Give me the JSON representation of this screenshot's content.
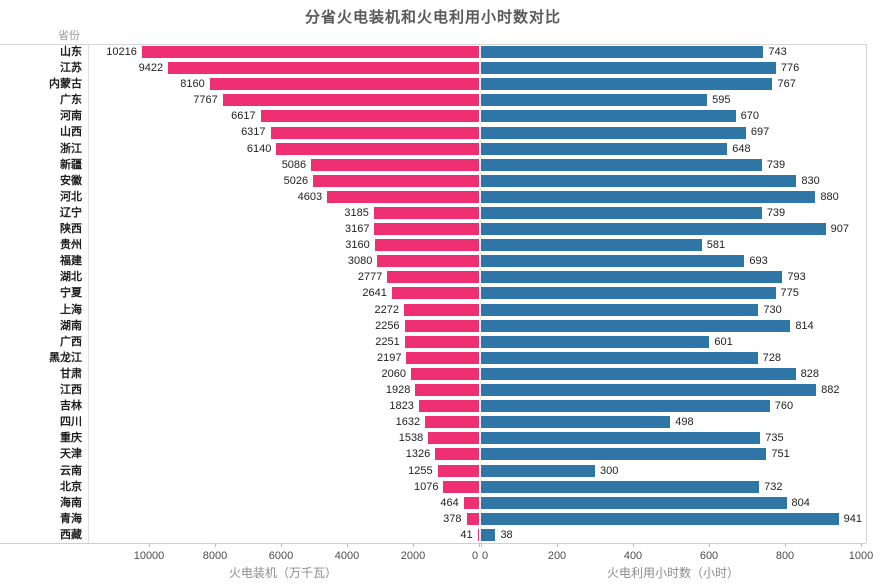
{
  "title": "分省火电装机和火电利用小时数对比",
  "column_header": "省份",
  "colors": {
    "left_bar": "#ee3072",
    "right_bar": "#2d76a6",
    "title_text": "#595959",
    "axis_text": "#8c8c8c",
    "border": "#d6d6d6"
  },
  "chart_data": {
    "type": "bar",
    "subtype": "diverging-horizontal-tornado",
    "title": "分省火电装机和火电利用小时数对比",
    "ylabel": "省份",
    "grid": false,
    "legend": false,
    "categories": [
      "山东",
      "江苏",
      "内蒙古",
      "广东",
      "河南",
      "山西",
      "浙江",
      "新疆",
      "安徽",
      "河北",
      "辽宁",
      "陕西",
      "贵州",
      "福建",
      "湖北",
      "宁夏",
      "上海",
      "湖南",
      "广西",
      "黑龙江",
      "甘肃",
      "江西",
      "吉林",
      "四川",
      "重庆",
      "天津",
      "云南",
      "北京",
      "海南",
      "青海",
      "西藏"
    ],
    "series": [
      {
        "name": "火电装机（万千瓦）",
        "side": "left",
        "color": "#ee3072",
        "axis_label": "火电装机（万千瓦）",
        "ticks": [
          10000,
          8000,
          6000,
          4000,
          2000,
          0
        ],
        "axis_range": [
          0,
          11800
        ],
        "values": [
          10216,
          9422,
          8160,
          7767,
          6617,
          6317,
          6140,
          5086,
          5026,
          4603,
          3185,
          3167,
          3160,
          3080,
          2777,
          2641,
          2272,
          2256,
          2251,
          2197,
          2060,
          1928,
          1823,
          1632,
          1538,
          1326,
          1255,
          1076,
          464,
          378,
          41
        ]
      },
      {
        "name": "火电利用小时数（小时）",
        "side": "right",
        "color": "#2d76a6",
        "axis_label": "火电利用小时数（小时）",
        "ticks": [
          0,
          200,
          400,
          600,
          800,
          1000
        ],
        "axis_range": [
          0,
          1010
        ],
        "values": [
          743,
          776,
          767,
          595,
          670,
          697,
          648,
          739,
          830,
          880,
          739,
          907,
          581,
          693,
          793,
          775,
          730,
          814,
          601,
          728,
          828,
          882,
          760,
          498,
          735,
          751,
          300,
          732,
          804,
          941,
          38
        ]
      }
    ]
  }
}
